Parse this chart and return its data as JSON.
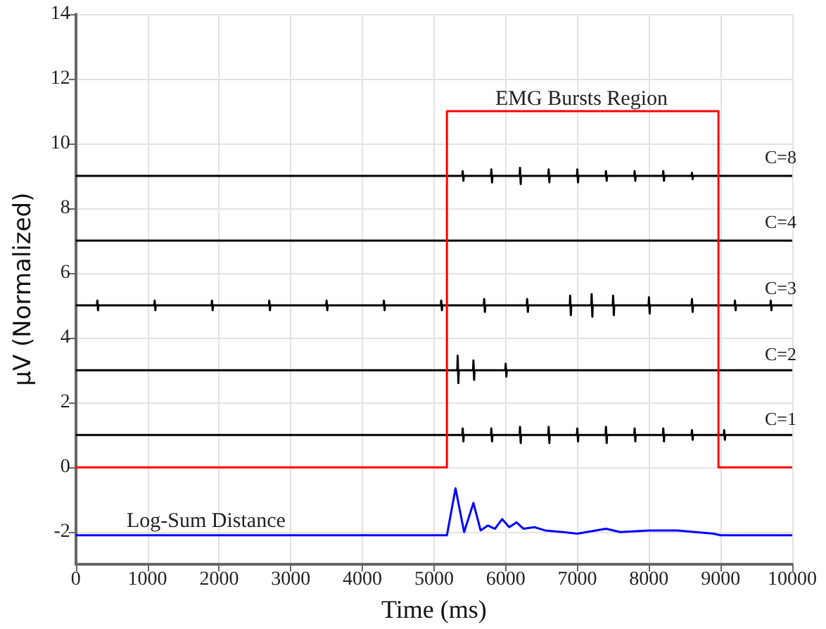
{
  "chart_data": {
    "type": "line",
    "xlabel": "Time (ms)",
    "ylabel": "μV (Normalized)",
    "xlim": [
      0,
      10000
    ],
    "ylim": [
      -3,
      14
    ],
    "xticks": [
      0,
      1000,
      2000,
      3000,
      4000,
      5000,
      6000,
      7000,
      8000,
      9000,
      10000
    ],
    "yticks": [
      -2,
      0,
      2,
      4,
      6,
      8,
      10,
      12,
      14
    ],
    "grid": true,
    "marker": "none",
    "line_style": "solid",
    "annotations": [
      "EMG Bursts Region",
      "Log-Sum Distance",
      "C=8",
      "C=4",
      "C=3",
      "C=2",
      "C=1"
    ],
    "series": [
      {
        "color": "#000000",
        "x": [
          0,
          5395,
          5400,
          5410,
          5415,
          5795,
          5800,
          5810,
          5815,
          6195,
          6200,
          6210,
          6215,
          6595,
          6600,
          6610,
          6615,
          6995,
          7000,
          7010,
          7015,
          7395,
          7400,
          7410,
          7415,
          7795,
          7800,
          7810,
          7815,
          8195,
          8200,
          8210,
          8215,
          8595,
          8600,
          8610,
          8615,
          10000
        ],
        "values": [
          9,
          9,
          9.15,
          8.85,
          9,
          9,
          9.2,
          8.8,
          9,
          9,
          9.25,
          8.75,
          9,
          9,
          9.2,
          8.8,
          9,
          9,
          9.2,
          8.8,
          9,
          9,
          9.15,
          8.85,
          9,
          9,
          9.15,
          8.85,
          9,
          9,
          9.15,
          8.85,
          9,
          9,
          9.1,
          8.9,
          9,
          9
        ]
      },
      {
        "color": "#000000",
        "x": [
          0,
          10000
        ],
        "values": [
          7,
          7
        ]
      },
      {
        "color": "#000000",
        "x": [
          0,
          295,
          300,
          310,
          315,
          1095,
          1100,
          1110,
          1115,
          1895,
          1900,
          1910,
          1915,
          2695,
          2700,
          2710,
          2715,
          3495,
          3500,
          3510,
          3515,
          4295,
          4300,
          4310,
          4315,
          5095,
          5100,
          5110,
          5115,
          5695,
          5700,
          5710,
          5715,
          6295,
          6300,
          6310,
          6315,
          6895,
          6900,
          6910,
          6915,
          7195,
          7200,
          7210,
          7215,
          7495,
          7500,
          7510,
          7515,
          7995,
          8000,
          8010,
          8015,
          8595,
          8600,
          8610,
          8615,
          9195,
          9200,
          9210,
          9215,
          9695,
          9700,
          9710,
          9715,
          10000
        ],
        "values": [
          5,
          5,
          5.15,
          4.85,
          5,
          5,
          5.15,
          4.85,
          5,
          5,
          5.15,
          4.85,
          5,
          5,
          5.15,
          4.85,
          5,
          5,
          5.15,
          4.85,
          5,
          5,
          5.15,
          4.85,
          5,
          5,
          5.15,
          4.85,
          5,
          5,
          5.2,
          4.8,
          5,
          5,
          5.2,
          4.8,
          5,
          5,
          5.3,
          4.7,
          5,
          5,
          5.35,
          4.65,
          5,
          5,
          5.3,
          4.7,
          5,
          5,
          5.25,
          4.75,
          5,
          5,
          5.2,
          4.8,
          5,
          5,
          5.15,
          4.85,
          5,
          5,
          5.15,
          4.85,
          5,
          5
        ]
      },
      {
        "color": "#000000",
        "x": [
          0,
          5325,
          5330,
          5340,
          5345,
          5545,
          5550,
          5560,
          5565,
          5995,
          6000,
          6010,
          6015,
          10000
        ],
        "values": [
          3,
          3,
          3.45,
          2.6,
          3,
          3,
          3.3,
          2.7,
          3,
          3,
          3.2,
          2.8,
          3,
          3
        ]
      },
      {
        "color": "#000000",
        "x": [
          0,
          5395,
          5400,
          5410,
          5415,
          5795,
          5800,
          5810,
          5815,
          6195,
          6200,
          6210,
          6215,
          6595,
          6600,
          6610,
          6615,
          6995,
          7000,
          7010,
          7015,
          7395,
          7400,
          7410,
          7415,
          7795,
          7800,
          7810,
          7815,
          8195,
          8200,
          8210,
          8215,
          8595,
          8600,
          8610,
          8615,
          9045,
          9050,
          9060,
          9065,
          10000
        ],
        "values": [
          1,
          1,
          1.2,
          0.8,
          1,
          1,
          1.2,
          0.8,
          1,
          1,
          1.25,
          0.75,
          1,
          1,
          1.25,
          0.75,
          1,
          1,
          1.2,
          0.8,
          1,
          1,
          1.25,
          0.75,
          1,
          1,
          1.2,
          0.8,
          1,
          1,
          1.2,
          0.8,
          1,
          1,
          1.15,
          0.85,
          1,
          1,
          1.15,
          0.85,
          1,
          1
        ]
      },
      {
        "color": "#ff0000",
        "x": [
          0,
          5180,
          5180,
          8970,
          8970,
          10000
        ],
        "values": [
          0,
          0,
          11,
          11,
          0,
          0
        ]
      },
      {
        "color": "#0000ff",
        "x": [
          0,
          5180,
          5300,
          5420,
          5550,
          5650,
          5750,
          5850,
          5950,
          6050,
          6150,
          6250,
          6400,
          6550,
          6800,
          7000,
          7400,
          7600,
          8000,
          8400,
          8900,
          9000,
          10000
        ],
        "values": [
          -2.1,
          -2.1,
          -0.65,
          -2.0,
          -1.1,
          -1.95,
          -1.8,
          -1.9,
          -1.6,
          -1.85,
          -1.7,
          -1.9,
          -1.85,
          -1.95,
          -2.0,
          -2.05,
          -1.9,
          -2.0,
          -1.95,
          -1.95,
          -2.05,
          -2.1,
          -2.1
        ]
      }
    ]
  }
}
